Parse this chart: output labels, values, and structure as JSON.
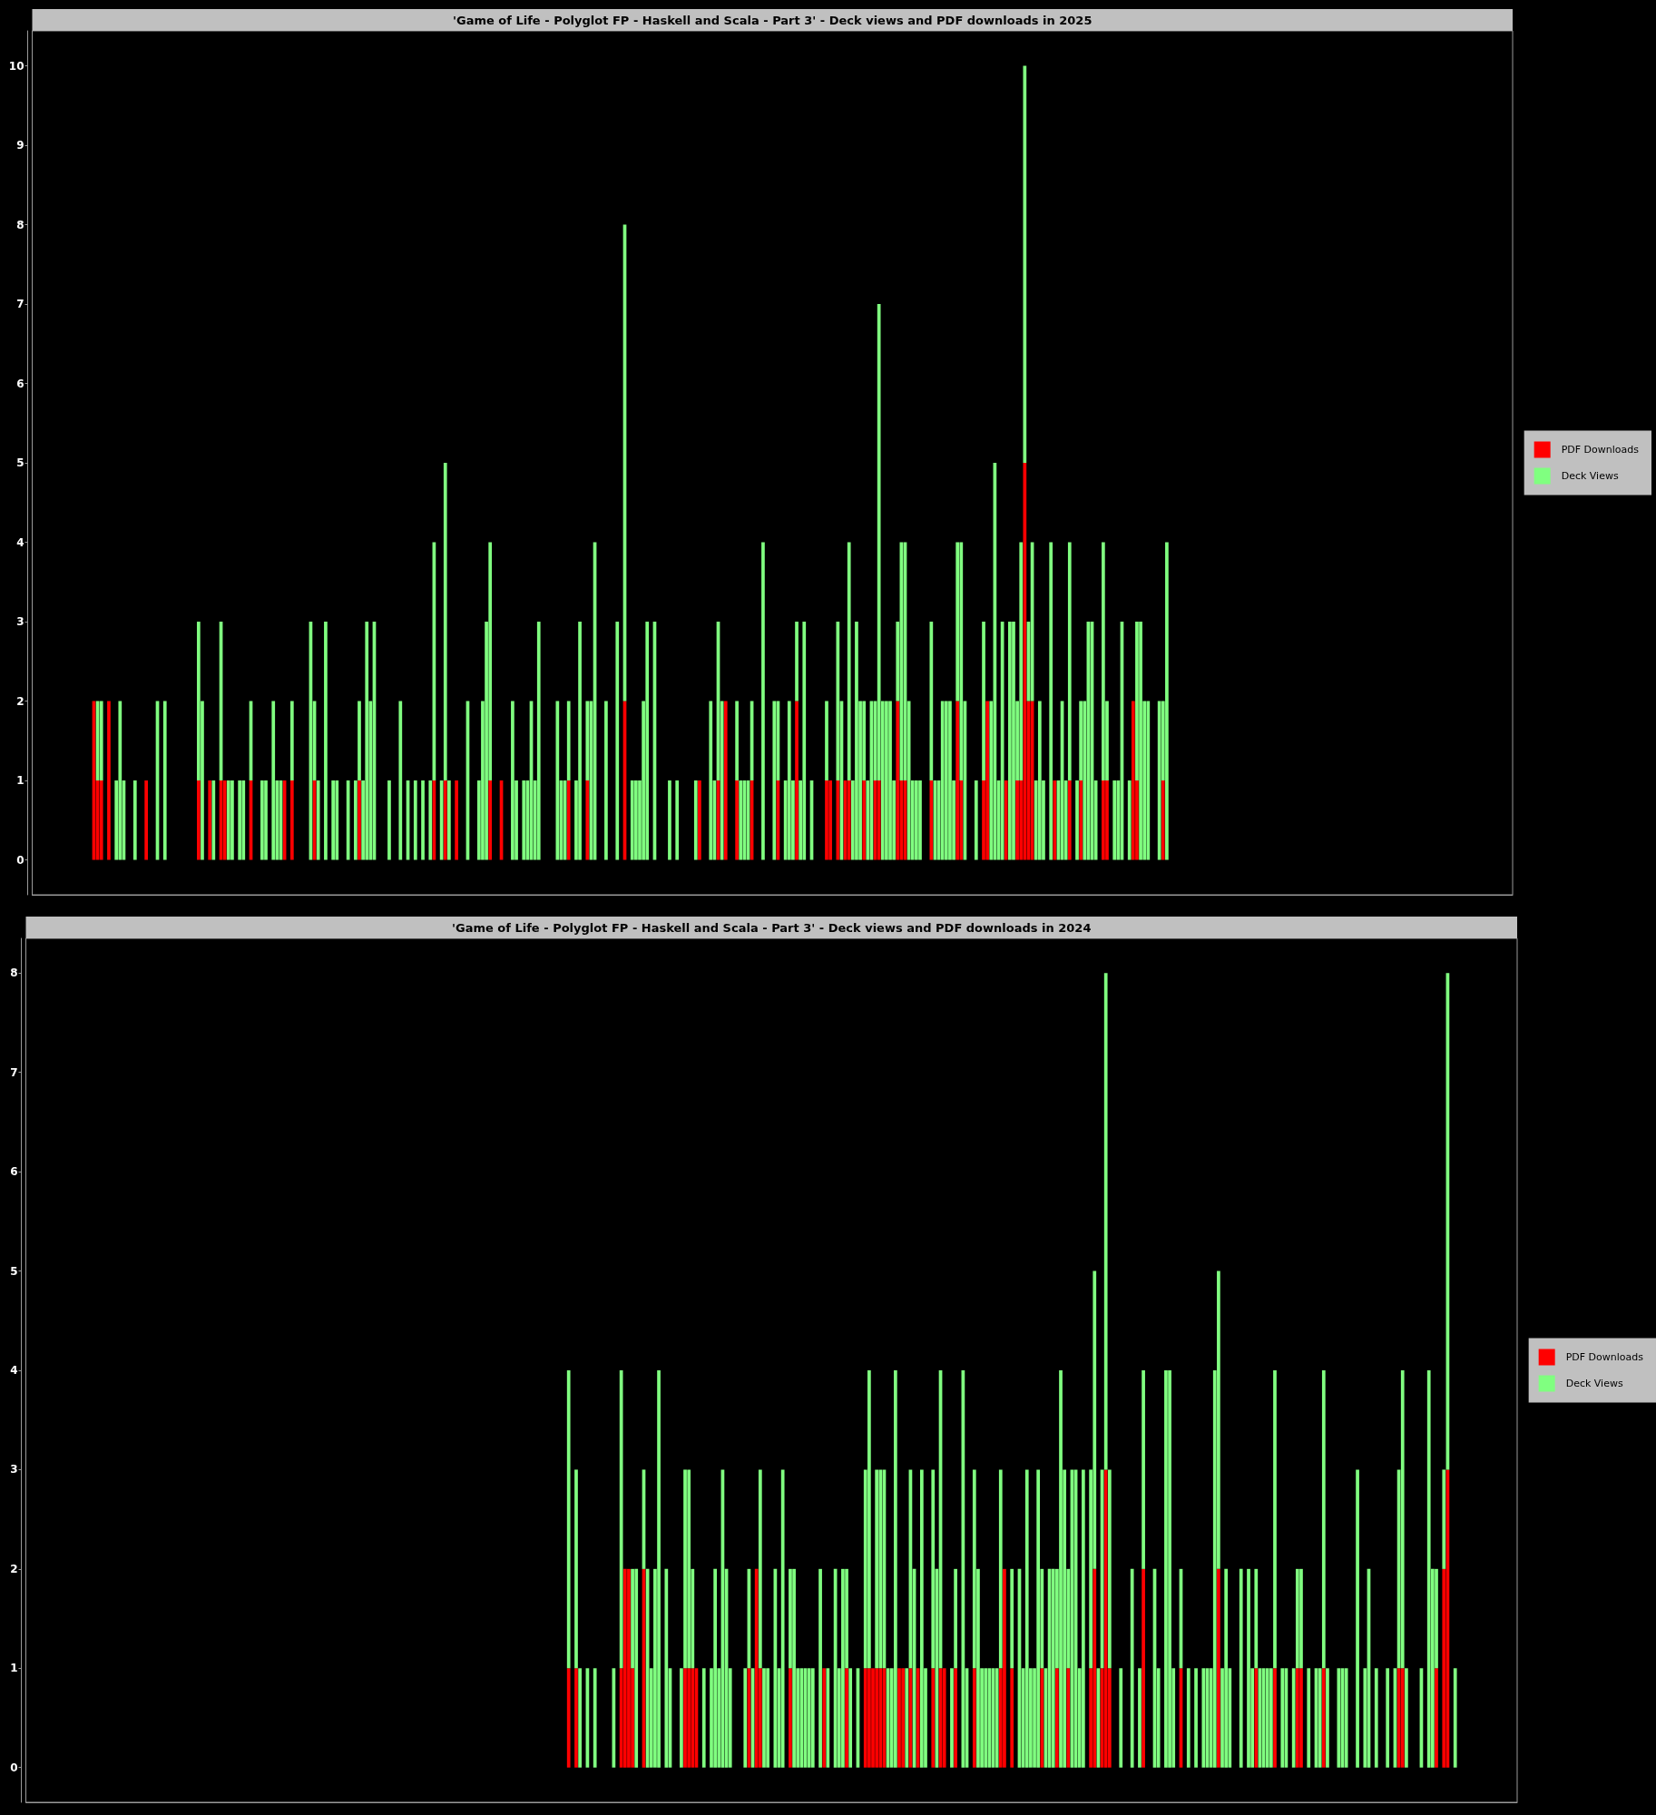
{
  "chart_data": [
    {
      "type": "bar",
      "title": "'Game of Life - Polyglot FP - Haskell and Scala - Part 3' - Deck views and PDF downloads in 2025",
      "stacked": true,
      "legend": "right",
      "tick_labels": "y",
      "ylim": [
        -0.44,
        10.44
      ],
      "yticks": [
        0,
        1,
        2,
        3,
        4,
        5,
        6,
        7,
        8,
        9,
        10
      ],
      "categories": [
        null,
        null,
        null,
        null,
        null,
        null,
        null,
        null,
        null,
        null,
        null,
        null,
        null,
        null,
        null,
        null,
        null,
        null,
        null,
        null,
        null,
        null,
        null,
        null,
        null,
        null,
        null,
        null,
        null,
        null,
        null,
        null,
        null,
        null,
        null,
        null,
        null,
        null,
        null,
        null,
        null,
        null,
        null,
        null,
        null,
        null,
        null,
        null,
        null,
        null,
        null,
        null,
        null,
        null,
        null,
        null,
        null,
        null,
        null,
        null,
        null,
        null,
        null,
        null,
        null,
        null,
        null,
        null,
        null,
        null,
        null,
        null,
        null,
        null,
        null,
        null,
        null,
        null,
        null,
        null,
        null,
        null,
        null,
        null,
        null,
        null,
        null,
        null,
        null,
        null,
        null,
        null,
        null,
        null,
        null,
        null,
        null,
        null,
        null,
        null,
        null,
        null,
        null,
        null,
        null,
        null,
        null,
        null,
        null,
        null,
        null,
        null,
        null,
        null,
        null,
        null,
        null,
        null,
        null,
        null,
        null,
        null,
        null,
        null,
        null,
        null,
        null,
        null,
        null,
        null,
        null,
        null,
        null,
        null,
        null,
        null,
        null,
        null,
        null,
        null,
        null,
        null,
        null,
        null,
        null,
        null,
        null,
        null,
        null,
        null,
        null,
        null,
        null,
        null,
        null,
        null,
        null,
        null,
        null,
        null,
        null,
        null,
        null,
        null,
        null,
        null,
        null,
        null,
        null,
        null,
        null,
        null,
        null,
        null,
        null,
        null,
        null,
        null,
        null,
        null,
        null,
        null,
        null,
        null,
        null,
        null,
        null,
        null,
        null,
        null,
        null,
        null,
        null,
        null,
        null,
        null,
        null,
        null,
        null,
        null,
        null,
        null,
        null,
        null,
        null,
        null,
        null,
        null,
        null,
        null,
        null,
        null,
        null,
        null,
        null,
        null,
        null,
        null,
        null,
        null,
        null,
        null,
        null,
        null,
        null,
        null,
        null,
        null,
        null,
        null,
        null,
        null,
        null,
        null,
        null,
        null,
        null,
        null,
        null,
        null,
        null,
        null,
        null,
        null,
        null,
        null,
        null,
        null,
        null,
        null,
        null,
        null,
        null,
        null,
        null,
        null,
        null,
        null,
        null,
        null,
        null,
        null,
        null,
        null,
        null,
        null,
        null,
        null,
        null,
        null,
        null,
        null,
        null,
        null,
        null,
        null,
        null,
        null,
        null,
        null,
        null,
        null,
        null,
        null,
        null,
        null,
        null,
        null,
        null,
        null,
        null,
        null,
        null,
        null,
        null,
        null,
        null,
        null,
        null,
        null,
        null,
        null,
        null,
        null,
        null,
        null,
        null,
        null,
        null,
        null,
        null,
        null,
        null,
        null,
        null,
        null,
        null,
        null,
        null,
        null,
        null,
        null,
        null,
        null,
        null,
        null,
        null,
        null,
        null,
        null,
        null,
        null,
        null,
        null,
        null,
        null,
        null,
        null,
        null,
        null,
        null,
        null,
        null,
        null,
        null,
        null,
        null,
        null,
        null,
        null,
        null,
        null,
        null,
        null,
        null,
        null,
        null,
        null,
        null,
        null,
        null,
        null,
        null,
        null,
        null,
        null,
        null,
        null,
        null,
        null,
        null,
        null,
        null,
        null,
        null,
        null,
        null,
        null,
        null,
        null,
        null,
        null,
        null,
        null,
        null,
        null,
        null,
        null,
        null,
        null,
        null,
        null,
        null,
        null,
        null,
        null
      ],
      "series": [
        {
          "name": "PDF Downloads",
          "color": "#ff0000",
          "values": [
            null,
            null,
            null,
            null,
            null,
            null,
            null,
            null,
            null,
            null,
            null,
            null,
            null,
            null,
            null,
            null,
            2,
            1,
            1,
            0,
            2,
            0,
            0,
            0,
            0,
            0,
            0,
            0,
            0,
            0,
            1,
            0,
            0,
            0,
            0,
            0,
            0,
            0,
            0,
            0,
            0,
            0,
            0,
            0,
            1,
            0,
            0,
            1,
            0,
            0,
            1,
            1,
            0,
            0,
            0,
            0,
            0,
            0,
            1,
            0,
            0,
            0,
            0,
            0,
            0,
            0,
            0,
            1,
            0,
            1,
            0,
            0,
            0,
            0,
            0,
            1,
            0,
            0,
            0,
            0,
            0,
            0,
            0,
            0,
            0,
            0,
            0,
            1,
            0,
            0,
            0,
            0,
            0,
            0,
            0,
            0,
            0,
            0,
            0,
            0,
            0,
            0,
            0,
            0,
            0,
            0,
            0,
            1,
            0,
            0,
            1,
            0,
            0,
            1,
            0,
            0,
            0,
            0,
            0,
            0,
            0,
            0,
            1,
            0,
            0,
            1,
            0,
            0,
            0,
            0,
            0,
            0,
            0,
            0,
            0,
            0,
            0,
            0,
            0,
            0,
            0,
            0,
            0,
            1,
            0,
            0,
            0,
            0,
            1,
            0,
            0,
            0,
            0,
            0,
            0,
            0,
            0,
            0,
            2,
            0,
            0,
            0,
            0,
            0,
            0,
            0,
            0,
            0,
            0,
            0,
            0,
            0,
            0,
            0,
            0,
            0,
            0,
            0,
            1,
            0,
            0,
            0,
            0,
            1,
            0,
            2,
            0,
            0,
            1,
            0,
            0,
            0,
            1,
            0,
            0,
            0,
            0,
            0,
            0,
            1,
            0,
            0,
            0,
            0,
            2,
            0,
            0,
            0,
            0,
            0,
            0,
            0,
            1,
            1,
            0,
            1,
            0,
            1,
            1,
            0,
            0,
            0,
            1,
            0,
            0,
            1,
            1,
            0,
            0,
            0,
            0,
            2,
            1,
            1,
            0,
            0,
            0,
            0,
            0,
            0,
            1,
            0,
            0,
            0,
            0,
            0,
            0,
            2,
            1,
            0,
            0,
            0,
            0,
            0,
            1,
            2,
            0,
            0,
            0,
            0,
            1,
            0,
            0,
            1,
            1,
            5,
            2,
            2,
            0,
            0,
            0,
            0,
            0,
            1,
            0,
            0,
            0,
            1,
            0,
            0,
            1,
            0,
            0,
            0,
            0,
            0,
            1,
            1,
            0,
            0,
            0,
            0,
            0,
            0,
            2,
            1,
            0,
            0,
            0,
            0,
            0,
            0,
            1,
            0,
            null,
            null,
            null,
            null,
            null,
            null,
            null,
            null,
            null,
            null,
            null,
            null,
            null,
            null,
            null,
            null,
            null,
            null,
            null,
            null,
            null,
            null,
            null,
            null,
            null,
            null,
            null,
            null,
            null,
            null,
            null,
            null,
            null,
            null,
            null,
            null,
            null,
            null,
            null,
            null,
            null,
            null,
            null,
            null,
            null,
            null,
            null,
            null,
            null,
            null,
            null,
            null,
            null,
            null,
            null,
            null,
            null,
            null,
            null,
            null,
            null,
            null,
            null,
            null,
            null,
            null,
            null,
            null,
            null,
            null,
            null,
            null,
            null,
            null,
            null,
            null,
            null,
            null,
            null,
            null,
            null,
            null,
            null,
            null,
            null,
            null,
            null,
            null,
            null,
            null,
            null,
            null
          ]
        },
        {
          "name": "Deck Views",
          "color": "#80ff80",
          "values": [
            null,
            null,
            null,
            null,
            null,
            null,
            null,
            null,
            null,
            null,
            null,
            null,
            null,
            null,
            null,
            null,
            0,
            1,
            1,
            0,
            0,
            0,
            1,
            2,
            1,
            0,
            0,
            1,
            0,
            0,
            0,
            0,
            0,
            2,
            0,
            2,
            0,
            0,
            0,
            0,
            0,
            0,
            0,
            0,
            2,
            2,
            0,
            0,
            1,
            0,
            2,
            0,
            1,
            1,
            0,
            1,
            1,
            0,
            1,
            0,
            0,
            1,
            1,
            0,
            2,
            1,
            1,
            0,
            0,
            1,
            0,
            0,
            0,
            0,
            3,
            1,
            1,
            0,
            3,
            0,
            1,
            1,
            0,
            0,
            1,
            0,
            1,
            1,
            1,
            3,
            2,
            3,
            0,
            0,
            0,
            1,
            0,
            0,
            2,
            0,
            1,
            0,
            1,
            0,
            1,
            0,
            1,
            3,
            0,
            1,
            4,
            1,
            0,
            0,
            0,
            0,
            2,
            0,
            0,
            1,
            2,
            3,
            3,
            0,
            0,
            0,
            0,
            0,
            2,
            1,
            0,
            1,
            1,
            2,
            1,
            3,
            0,
            0,
            0,
            0,
            2,
            1,
            1,
            1,
            0,
            1,
            3,
            0,
            1,
            2,
            4,
            0,
            0,
            2,
            0,
            0,
            3,
            0,
            6,
            0,
            1,
            1,
            1,
            2,
            3,
            0,
            3,
            0,
            0,
            0,
            1,
            0,
            1,
            0,
            0,
            0,
            0,
            1,
            0,
            0,
            0,
            2,
            1,
            2,
            2,
            0,
            0,
            0,
            1,
            1,
            1,
            1,
            1,
            0,
            0,
            4,
            0,
            0,
            2,
            1,
            0,
            1,
            2,
            1,
            1,
            1,
            3,
            0,
            1,
            0,
            0,
            0,
            1,
            0,
            0,
            2,
            2,
            0,
            3,
            1,
            3,
            2,
            1,
            1,
            2,
            1,
            6,
            2,
            2,
            2,
            1,
            1,
            3,
            3,
            2,
            1,
            1,
            1,
            0,
            0,
            2,
            1,
            1,
            2,
            2,
            2,
            1,
            2,
            3,
            2,
            0,
            0,
            1,
            0,
            2,
            0,
            2,
            5,
            1,
            3,
            0,
            3,
            3,
            1,
            3,
            5,
            1,
            2,
            1,
            2,
            1,
            0,
            4,
            0,
            1,
            2,
            1,
            3,
            0,
            1,
            1,
            2,
            3,
            3,
            1,
            0,
            3,
            1,
            0,
            1,
            1,
            3,
            0,
            1,
            0,
            2,
            3,
            2,
            2,
            0,
            0,
            2,
            1,
            4,
            null,
            null,
            null,
            null,
            null,
            null,
            null,
            null,
            null,
            null,
            null,
            null,
            null,
            null,
            null,
            null,
            null,
            null,
            null,
            null,
            null,
            null,
            null,
            null,
            null,
            null,
            null,
            null,
            null,
            null,
            null,
            null,
            null,
            null,
            null,
            null,
            null,
            null,
            null,
            null,
            null,
            null,
            null,
            null,
            null,
            null,
            null,
            null,
            null,
            null,
            null,
            null,
            null,
            null,
            null,
            null,
            null,
            null,
            null,
            null,
            null,
            null,
            null,
            null,
            null,
            null,
            null,
            null,
            null,
            null,
            null,
            null,
            null,
            null,
            null,
            null,
            null,
            null,
            null,
            null,
            null,
            null,
            null,
            null,
            null,
            null,
            null,
            null,
            null,
            null,
            null,
            null
          ]
        }
      ]
    },
    {
      "type": "bar",
      "title": "'Game of Life - Polyglot FP - Haskell and Scala - Part 3' - Deck views and PDF downloads in 2024",
      "stacked": true,
      "legend": "right",
      "tick_labels": "y",
      "ylim": [
        -0.35,
        8.35
      ],
      "yticks": [
        0,
        1,
        2,
        3,
        4,
        5,
        6,
        7,
        8
      ],
      "categories": [
        null,
        null,
        null,
        null,
        null,
        null,
        null,
        null,
        null,
        null,
        null,
        null,
        null,
        null,
        null,
        null,
        null,
        null,
        null,
        null,
        null,
        null,
        null,
        null,
        null,
        null,
        null,
        null,
        null,
        null,
        null,
        null,
        null,
        null,
        null,
        null,
        null,
        null,
        null,
        null,
        null,
        null,
        null,
        null,
        null,
        null,
        null,
        null,
        null,
        null,
        null,
        null,
        null,
        null,
        null,
        null,
        null,
        null,
        null,
        null,
        null,
        null,
        null,
        null,
        null,
        null,
        null,
        null,
        null,
        null,
        null,
        null,
        null,
        null,
        null,
        null,
        null,
        null,
        null,
        null,
        null,
        null,
        null,
        null,
        null,
        null,
        null,
        null,
        null,
        null,
        null,
        null,
        null,
        null,
        null,
        null,
        null,
        null,
        null,
        null,
        null,
        null,
        null,
        null,
        null,
        null,
        null,
        null,
        null,
        null,
        null,
        null,
        null,
        null,
        null,
        null,
        null,
        null,
        null,
        null,
        null,
        null,
        null,
        null,
        null,
        null,
        null,
        null,
        null,
        null,
        null,
        null,
        null,
        null,
        null,
        null,
        null,
        null,
        null,
        null,
        null,
        null,
        null,
        null,
        null,
        null,
        null,
        null,
        null,
        null,
        null,
        null,
        null,
        null,
        null,
        null,
        null,
        null,
        null,
        null,
        null,
        null,
        null,
        null,
        null,
        null,
        null,
        null,
        null,
        null,
        null,
        null,
        null,
        null,
        null,
        null,
        null,
        null,
        null,
        null,
        null,
        null,
        null,
        null,
        null,
        null,
        null,
        null,
        null,
        null,
        null,
        null,
        null,
        null,
        null,
        null,
        null,
        null,
        null,
        null,
        null,
        null,
        null,
        null,
        null,
        null,
        null,
        null,
        null,
        null,
        null,
        null,
        null,
        null,
        null,
        null,
        null,
        null,
        null,
        null,
        null,
        null,
        null,
        null,
        null,
        null,
        null,
        null,
        null,
        null,
        null,
        null,
        null,
        null,
        null,
        null,
        null,
        null,
        null,
        null,
        null,
        null,
        null,
        null,
        null,
        null,
        null,
        null,
        null,
        null,
        null,
        null,
        null,
        null,
        null,
        null,
        null,
        null,
        null,
        null,
        null,
        null,
        null,
        null,
        null,
        null,
        null,
        null,
        null,
        null,
        null,
        null,
        null,
        null,
        null,
        null,
        null,
        null,
        null,
        null,
        null,
        null,
        null,
        null,
        null,
        null,
        null,
        null,
        null,
        null,
        null,
        null,
        null,
        null,
        null,
        null,
        null,
        null,
        null,
        null,
        null,
        null,
        null,
        null,
        null,
        null,
        null,
        null,
        null,
        null,
        null,
        null,
        null,
        null,
        null,
        null,
        null,
        null,
        null,
        null,
        null,
        null,
        null,
        null,
        null,
        null,
        null,
        null,
        null,
        null,
        null,
        null,
        null,
        null,
        null,
        null,
        null,
        null,
        null,
        null,
        null,
        null,
        null,
        null,
        null,
        null,
        null,
        null,
        null,
        null,
        null,
        null,
        null,
        null,
        null,
        null,
        null,
        null,
        null,
        null,
        null,
        null,
        null,
        null,
        null,
        null,
        null,
        null,
        null,
        null,
        null,
        null,
        null,
        null,
        null,
        null,
        null,
        null,
        null,
        null,
        null,
        null,
        null,
        null,
        null,
        null,
        null,
        null,
        null,
        null,
        null,
        null,
        null,
        null,
        null,
        null,
        null
      ],
      "series": [
        {
          "name": "PDF Downloads",
          "color": "#ff0000",
          "values": [
            null,
            null,
            null,
            null,
            null,
            null,
            null,
            null,
            null,
            null,
            null,
            null,
            null,
            null,
            null,
            null,
            null,
            null,
            null,
            null,
            null,
            null,
            null,
            null,
            null,
            null,
            null,
            null,
            null,
            null,
            null,
            null,
            null,
            null,
            null,
            null,
            null,
            null,
            null,
            null,
            null,
            null,
            null,
            null,
            null,
            null,
            null,
            null,
            null,
            null,
            null,
            null,
            null,
            null,
            null,
            null,
            null,
            null,
            null,
            null,
            null,
            null,
            null,
            null,
            null,
            null,
            null,
            null,
            null,
            null,
            null,
            null,
            null,
            null,
            null,
            null,
            null,
            null,
            null,
            null,
            null,
            null,
            null,
            null,
            null,
            null,
            null,
            null,
            null,
            null,
            null,
            null,
            null,
            null,
            null,
            null,
            null,
            null,
            null,
            null,
            null,
            null,
            null,
            null,
            null,
            null,
            null,
            null,
            null,
            null,
            null,
            null,
            null,
            null,
            null,
            null,
            null,
            null,
            null,
            null,
            null,
            null,
            null,
            null,
            null,
            null,
            null,
            null,
            null,
            null,
            null,
            null,
            null,
            null,
            null,
            null,
            null,
            null,
            null,
            null,
            null,
            null,
            null,
            null,
            1,
            0,
            1,
            0,
            0,
            0,
            0,
            0,
            0,
            0,
            0,
            0,
            0,
            0,
            1,
            2,
            2,
            1,
            0,
            0,
            2,
            0,
            0,
            0,
            0,
            0,
            0,
            0,
            0,
            0,
            0,
            1,
            1,
            1,
            1,
            0,
            0,
            0,
            0,
            0,
            0,
            0,
            0,
            0,
            0,
            0,
            0,
            0,
            1,
            0,
            2,
            1,
            0,
            0,
            0,
            0,
            0,
            0,
            0,
            1,
            0,
            0,
            0,
            0,
            0,
            0,
            0,
            0,
            1,
            0,
            0,
            0,
            0,
            0,
            1,
            0,
            0,
            0,
            0,
            1,
            1,
            1,
            1,
            1,
            1,
            0,
            0,
            0,
            1,
            1,
            0,
            1,
            0,
            1,
            0,
            0,
            0,
            1,
            0,
            1,
            1,
            0,
            0,
            1,
            0,
            0,
            0,
            0,
            1,
            0,
            0,
            0,
            0,
            0,
            0,
            1,
            2,
            0,
            1,
            0,
            0,
            0,
            0,
            0,
            0,
            0,
            1,
            0,
            0,
            0,
            1,
            0,
            0,
            1,
            0,
            0,
            0,
            0,
            0,
            1,
            2,
            0,
            1,
            3,
            1,
            0,
            0,
            0,
            0,
            0,
            0,
            0,
            0,
            2,
            0,
            0,
            0,
            0,
            0,
            0,
            0,
            0,
            0,
            1,
            0,
            0,
            0,
            0,
            0,
            0,
            0,
            0,
            0,
            2,
            0,
            0,
            0,
            0,
            0,
            0,
            0,
            0,
            0,
            1,
            0,
            0,
            0,
            0,
            1,
            0,
            0,
            0,
            0,
            0,
            1,
            1,
            0,
            0,
            0,
            0,
            0,
            1,
            0,
            0,
            0,
            0,
            0,
            0,
            0,
            0,
            0,
            0,
            0,
            0,
            0,
            0,
            0,
            0,
            0,
            0,
            0,
            1,
            1,
            0,
            0,
            0,
            0,
            0,
            0,
            0,
            0,
            1,
            0,
            2,
            3,
            0,
            0,
            null,
            null,
            null,
            null,
            null,
            null,
            null,
            null,
            null,
            null,
            null,
            null,
            null,
            null,
            null,
            null
          ]
        },
        {
          "name": "Deck Views",
          "color": "#80ff80",
          "values": [
            null,
            null,
            null,
            null,
            null,
            null,
            null,
            null,
            null,
            null,
            null,
            null,
            null,
            null,
            null,
            null,
            null,
            null,
            null,
            null,
            null,
            null,
            null,
            null,
            null,
            null,
            null,
            null,
            null,
            null,
            null,
            null,
            null,
            null,
            null,
            null,
            null,
            null,
            null,
            null,
            null,
            null,
            null,
            null,
            null,
            null,
            null,
            null,
            null,
            null,
            null,
            null,
            null,
            null,
            null,
            null,
            null,
            null,
            null,
            null,
            null,
            null,
            null,
            null,
            null,
            null,
            null,
            null,
            null,
            null,
            null,
            null,
            null,
            null,
            null,
            null,
            null,
            null,
            null,
            null,
            null,
            null,
            null,
            null,
            null,
            null,
            null,
            null,
            null,
            null,
            null,
            null,
            null,
            null,
            null,
            null,
            null,
            null,
            null,
            null,
            null,
            null,
            null,
            null,
            null,
            null,
            null,
            null,
            null,
            null,
            null,
            null,
            null,
            null,
            null,
            null,
            null,
            null,
            null,
            null,
            null,
            null,
            null,
            null,
            null,
            null,
            null,
            null,
            null,
            null,
            null,
            null,
            null,
            null,
            null,
            null,
            null,
            null,
            null,
            null,
            null,
            null,
            null,
            null,
            3,
            0,
            2,
            1,
            0,
            1,
            0,
            1,
            0,
            0,
            0,
            0,
            1,
            0,
            3,
            0,
            0,
            1,
            2,
            0,
            1,
            2,
            1,
            2,
            4,
            0,
            2,
            1,
            0,
            0,
            1,
            2,
            2,
            1,
            0,
            0,
            1,
            0,
            1,
            2,
            1,
            3,
            2,
            1,
            0,
            0,
            0,
            1,
            1,
            1,
            0,
            2,
            1,
            1,
            0,
            2,
            1,
            3,
            0,
            1,
            2,
            1,
            1,
            1,
            1,
            1,
            0,
            2,
            0,
            1,
            0,
            2,
            1,
            2,
            1,
            1,
            0,
            1,
            0,
            2,
            3,
            0,
            2,
            2,
            2,
            1,
            1,
            4,
            0,
            0,
            1,
            2,
            2,
            0,
            3,
            1,
            0,
            2,
            2,
            3,
            0,
            0,
            1,
            1,
            0,
            4,
            1,
            0,
            2,
            2,
            1,
            1,
            1,
            1,
            1,
            2,
            0,
            0,
            1,
            0,
            2,
            1,
            3,
            1,
            1,
            3,
            1,
            1,
            2,
            2,
            1,
            4,
            3,
            1,
            3,
            3,
            1,
            3,
            0,
            2,
            3,
            1,
            2,
            5,
            2,
            0,
            0,
            1,
            0,
            0,
            2,
            0,
            1,
            2,
            0,
            0,
            2,
            1,
            0,
            4,
            4,
            1,
            0,
            1,
            0,
            1,
            0,
            1,
            0,
            1,
            1,
            1,
            4,
            3,
            1,
            2,
            1,
            0,
            0,
            2,
            0,
            2,
            1,
            1,
            1,
            1,
            1,
            1,
            3,
            0,
            1,
            1,
            0,
            1,
            1,
            1,
            0,
            1,
            0,
            1,
            1,
            3,
            1,
            0,
            0,
            1,
            1,
            1,
            0,
            0,
            3,
            0,
            1,
            2,
            0,
            1,
            0,
            0,
            1,
            0,
            1,
            2,
            3,
            1,
            0,
            0,
            0,
            1,
            0,
            4,
            2,
            1,
            0,
            1,
            5,
            0,
            1,
            null,
            null,
            null,
            null,
            null,
            null,
            null,
            null,
            null,
            null,
            null,
            null,
            null,
            null,
            null,
            null
          ]
        }
      ]
    }
  ]
}
